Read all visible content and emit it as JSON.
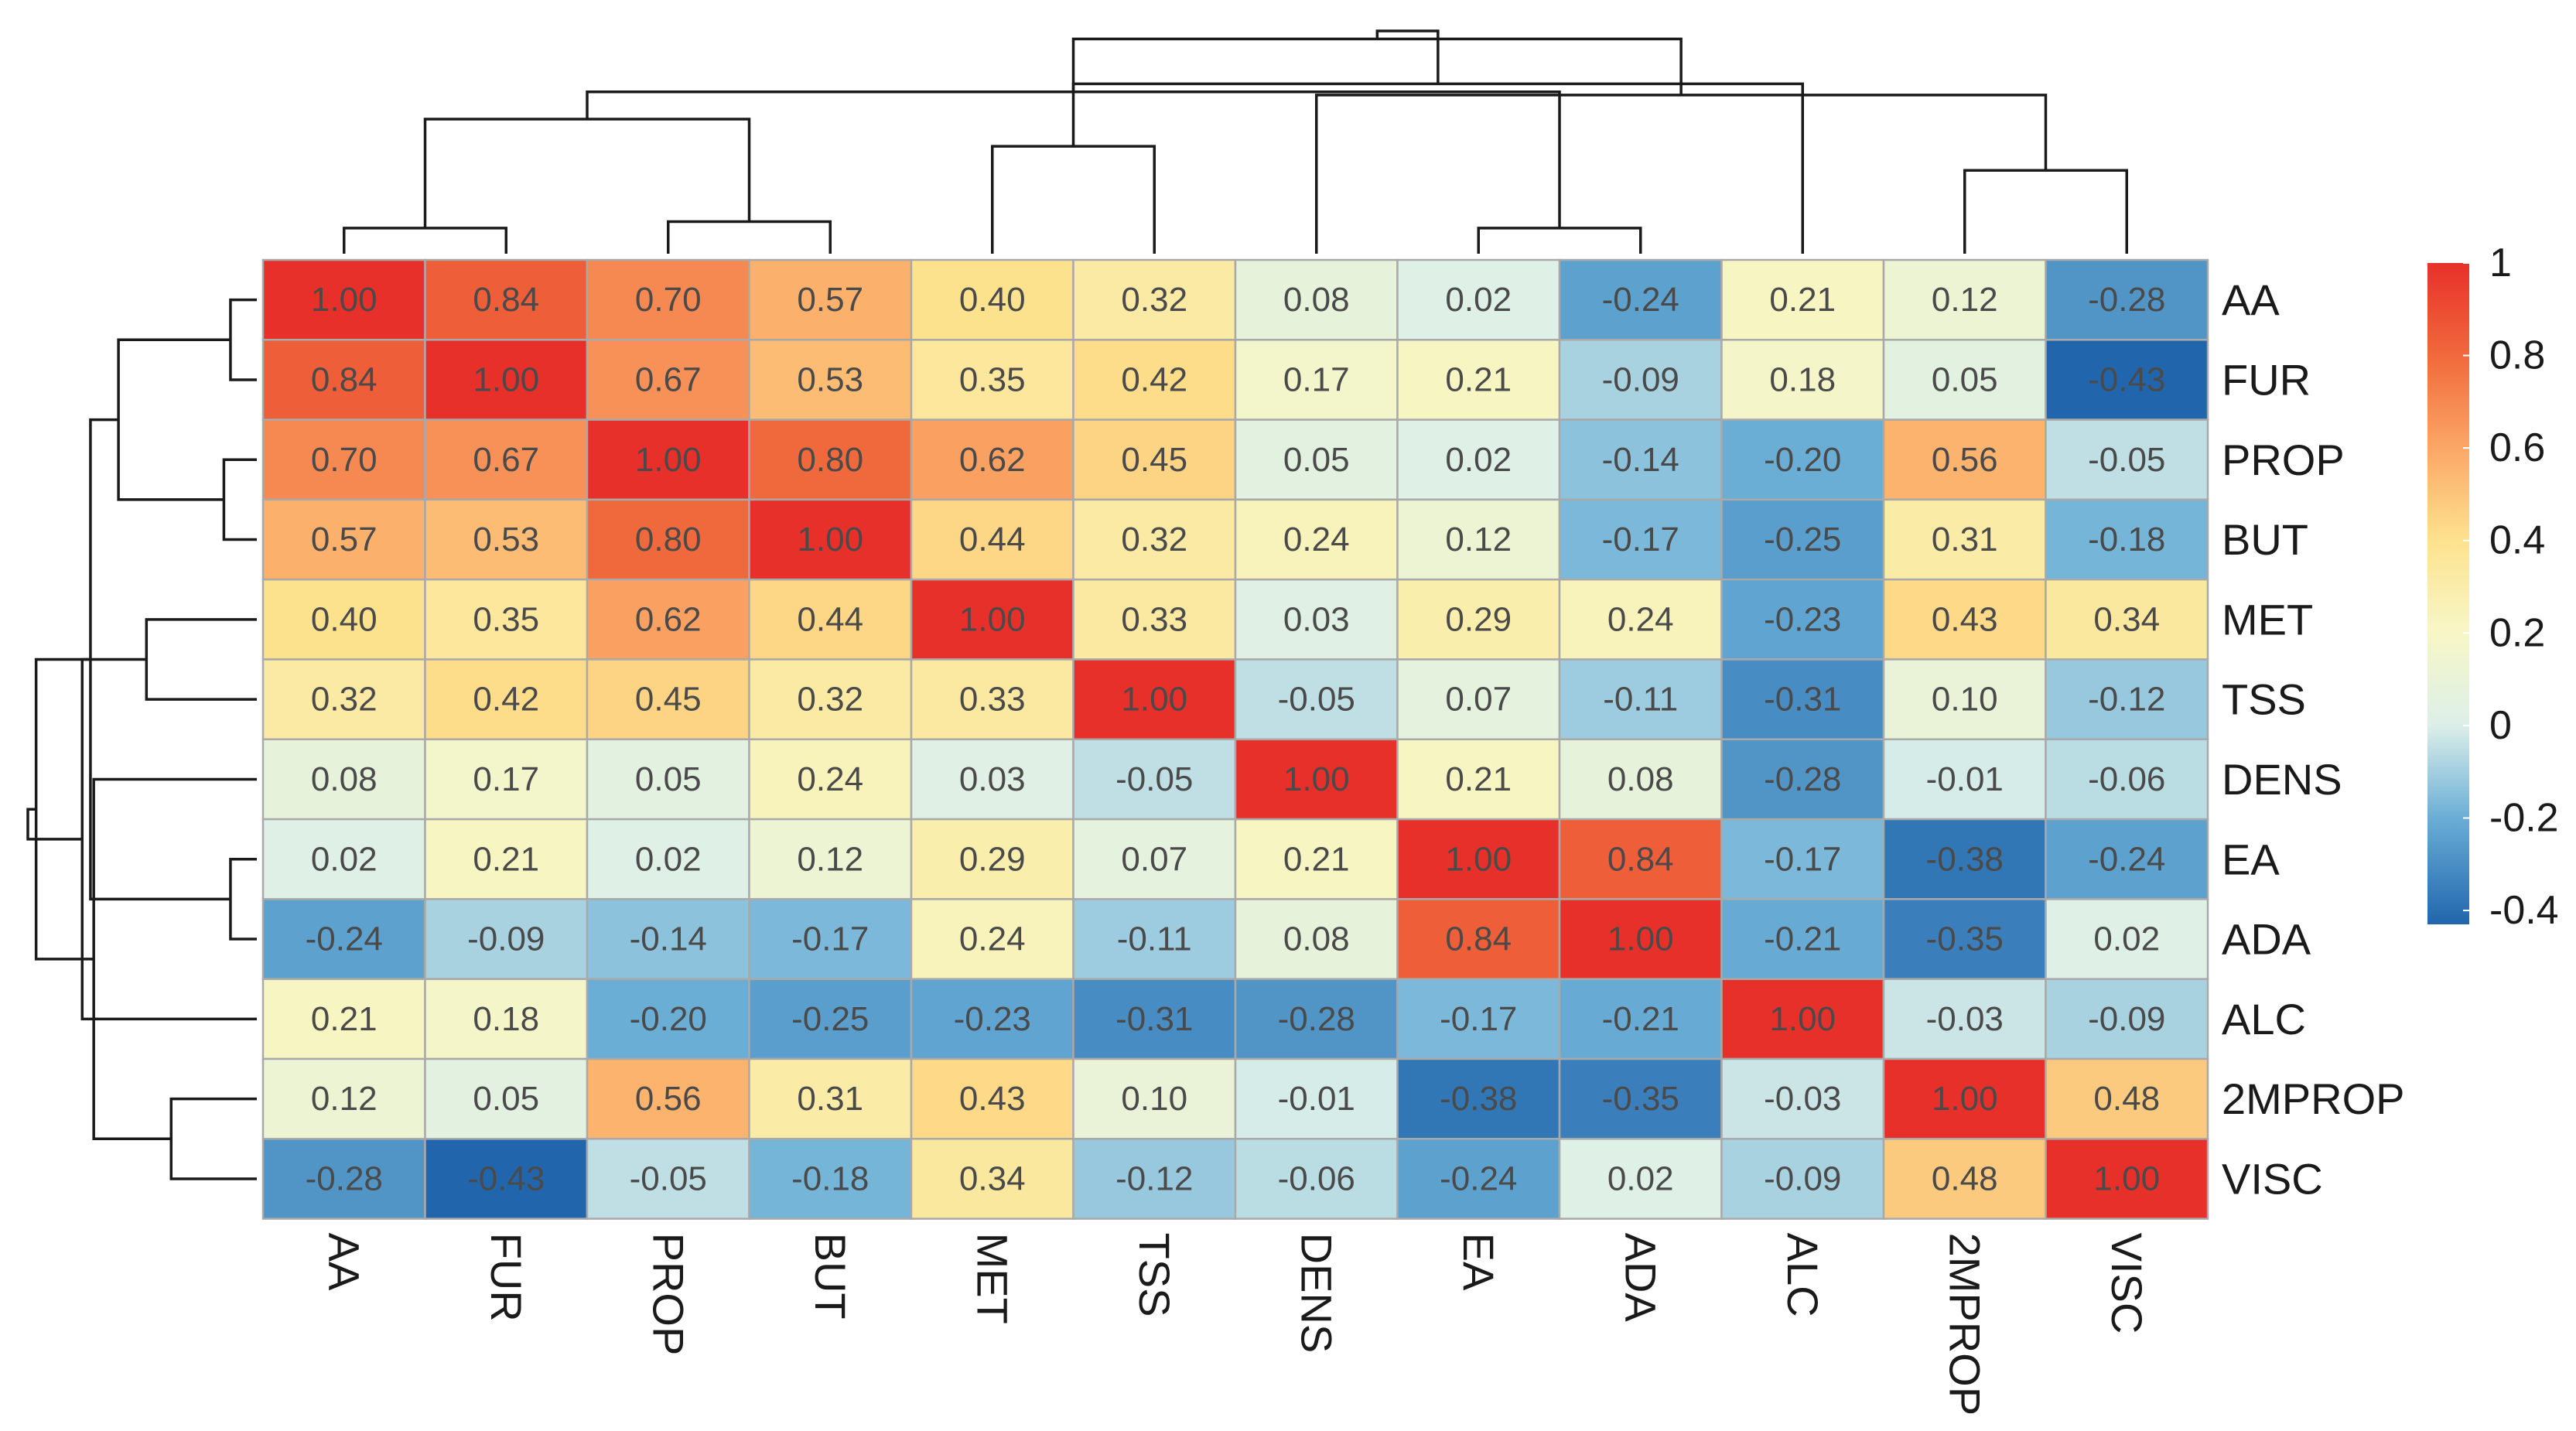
{
  "chart_data": {
    "type": "heatmap",
    "title": "",
    "row_labels": [
      "AA",
      "FUR",
      "PROP",
      "BUT",
      "MET",
      "TSS",
      "DENS",
      "EA",
      "ADA",
      "ALC",
      "2MPROP",
      "VISC"
    ],
    "column_labels": [
      "AA",
      "FUR",
      "PROP",
      "BUT",
      "MET",
      "TSS",
      "DENS",
      "EA",
      "ADA",
      "ALC",
      "2MPROP",
      "VISC"
    ],
    "values": [
      [
        1.0,
        0.84,
        0.7,
        0.57,
        0.4,
        0.32,
        0.08,
        0.02,
        -0.24,
        0.21,
        0.12,
        -0.28
      ],
      [
        0.84,
        1.0,
        0.67,
        0.53,
        0.35,
        0.42,
        0.17,
        0.21,
        -0.09,
        0.18,
        0.05,
        -0.43
      ],
      [
        0.7,
        0.67,
        1.0,
        0.8,
        0.62,
        0.45,
        0.05,
        0.02,
        -0.14,
        -0.2,
        0.56,
        -0.05
      ],
      [
        0.57,
        0.53,
        0.8,
        1.0,
        0.44,
        0.32,
        0.24,
        0.12,
        -0.17,
        -0.25,
        0.31,
        -0.18
      ],
      [
        0.4,
        0.35,
        0.62,
        0.44,
        1.0,
        0.33,
        0.03,
        0.29,
        0.24,
        -0.23,
        0.43,
        0.34
      ],
      [
        0.32,
        0.42,
        0.45,
        0.32,
        0.33,
        1.0,
        -0.05,
        0.07,
        -0.11,
        -0.31,
        0.1,
        -0.12
      ],
      [
        0.08,
        0.17,
        0.05,
        0.24,
        0.03,
        -0.05,
        1.0,
        0.21,
        0.08,
        -0.28,
        -0.01,
        -0.06
      ],
      [
        0.02,
        0.21,
        0.02,
        0.12,
        0.29,
        0.07,
        0.21,
        1.0,
        0.84,
        -0.17,
        -0.38,
        -0.24
      ],
      [
        -0.24,
        -0.09,
        -0.14,
        -0.17,
        0.24,
        -0.11,
        0.08,
        0.84,
        1.0,
        -0.21,
        -0.35,
        0.02
      ],
      [
        0.21,
        0.18,
        -0.2,
        -0.25,
        -0.23,
        -0.31,
        -0.28,
        -0.17,
        -0.21,
        1.0,
        -0.03,
        -0.09
      ],
      [
        0.12,
        0.05,
        0.56,
        0.31,
        0.43,
        0.1,
        -0.01,
        -0.38,
        -0.35,
        -0.03,
        1.0,
        0.48
      ],
      [
        -0.28,
        -0.43,
        -0.05,
        -0.18,
        0.34,
        -0.12,
        -0.06,
        -0.24,
        0.02,
        -0.09,
        0.48,
        1.0
      ]
    ],
    "value_format": "two decimals",
    "color_scale": {
      "min": -0.43,
      "max": 1.0,
      "stops": [
        {
          "value": -0.43,
          "color": "#2166ac"
        },
        {
          "value": -0.2,
          "color": "#6aaed6"
        },
        {
          "value": 0.0,
          "color": "#dcefe9"
        },
        {
          "value": 0.2,
          "color": "#f7f7c6"
        },
        {
          "value": 0.4,
          "color": "#fde28e"
        },
        {
          "value": 0.6,
          "color": "#fba766"
        },
        {
          "value": 0.8,
          "color": "#f0693c"
        },
        {
          "value": 1.0,
          "color": "#e8302a"
        }
      ]
    },
    "legend": {
      "placement": "right",
      "ticks": [
        {
          "value": 1,
          "label": "1"
        },
        {
          "value": 0.8,
          "label": "0.8"
        },
        {
          "value": 0.6,
          "label": "0.6"
        },
        {
          "value": 0.4,
          "label": "0.4"
        },
        {
          "value": 0.2,
          "label": "0.2"
        },
        {
          "value": 0,
          "label": "0"
        },
        {
          "value": -0.2,
          "label": "-0.2"
        },
        {
          "value": -0.4,
          "label": "-0.4"
        }
      ]
    },
    "dendrogram": {
      "leaf_order": [
        "AA",
        "FUR",
        "PROP",
        "BUT",
        "MET",
        "TSS",
        "DENS",
        "EA",
        "ADA",
        "ALC",
        "2MPROP",
        "VISC"
      ],
      "merges": [
        {
          "a": 0,
          "b": 1,
          "height": 0.16
        },
        {
          "a": 2,
          "b": 3,
          "height": 0.2
        },
        {
          "a": 7,
          "b": 8,
          "height": 0.16
        },
        {
          "a": 10,
          "b": 11,
          "height": 0.52
        },
        {
          "a": 4,
          "b": 5,
          "height": 0.67
        },
        {
          "a": 12,
          "b": 13,
          "height": 0.84
        },
        {
          "a": 15,
          "b": 6,
          "height": 0.99
        },
        {
          "a": 17,
          "b": 14,
          "height": 1.01
        },
        {
          "a": 9,
          "b": 16,
          "height": 1.06
        },
        {
          "a": 18,
          "b": 19,
          "height": 1.34
        },
        {
          "a": 20,
          "b": 21,
          "height": 1.39
        }
      ]
    }
  }
}
